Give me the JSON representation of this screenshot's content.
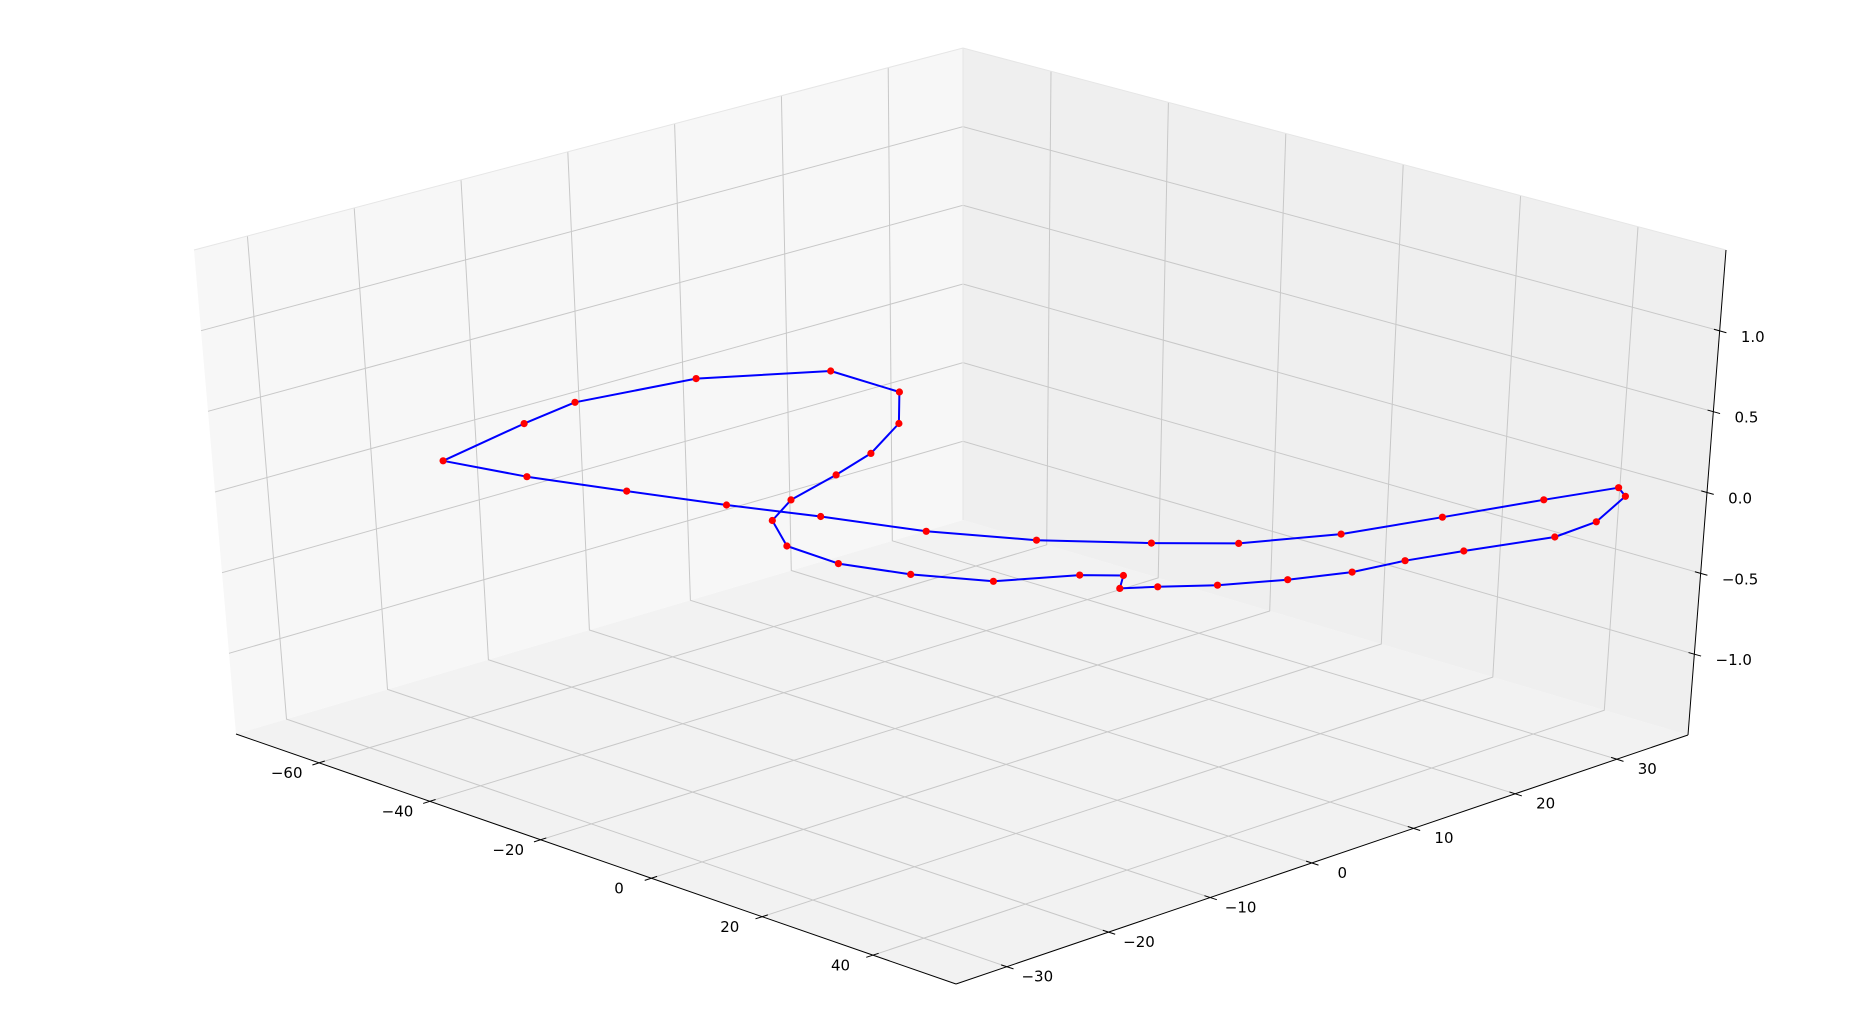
{
  "chart_data": {
    "type": "scatter",
    "projection": "3d",
    "title": "",
    "xlabel": "",
    "ylabel": "",
    "zlabel": "",
    "xlim": [
      -75,
      55
    ],
    "ylim": [
      -35,
      37
    ],
    "zlim": [
      -1.5,
      1.5
    ],
    "grid": true,
    "legend": "none",
    "x_ticks": [
      {
        "value": -60,
        "label": "−60"
      },
      {
        "value": -40,
        "label": "−40"
      },
      {
        "value": -20,
        "label": "−20"
      },
      {
        "value": 0,
        "label": "0"
      },
      {
        "value": 20,
        "label": "20"
      },
      {
        "value": 40,
        "label": "40"
      }
    ],
    "y_ticks": [
      {
        "value": -30,
        "label": "−30"
      },
      {
        "value": -20,
        "label": "−20"
      },
      {
        "value": -10,
        "label": "−10"
      },
      {
        "value": 0,
        "label": "0"
      },
      {
        "value": 10,
        "label": "10"
      },
      {
        "value": 20,
        "label": "20"
      },
      {
        "value": 30,
        "label": "30"
      }
    ],
    "z_ticks": [
      {
        "value": -1.0,
        "label": "−1.0"
      },
      {
        "value": -0.5,
        "label": "−0.5"
      },
      {
        "value": 0.0,
        "label": "0.0"
      },
      {
        "value": 0.5,
        "label": "0.5"
      },
      {
        "value": 1.0,
        "label": "1.0"
      }
    ],
    "series": [
      {
        "kind": "line",
        "color": "#0000ff",
        "points": [
          [
            -66,
            -18,
            0
          ],
          [
            -70,
            -8,
            0
          ],
          [
            -72,
            -2,
            0
          ],
          [
            -69,
            8,
            0
          ],
          [
            -60,
            16,
            0
          ],
          [
            -48,
            16,
            0
          ],
          [
            -39,
            11,
            0
          ],
          [
            -33,
            5,
            0
          ],
          [
            -30,
            0,
            0
          ],
          [
            -27,
            -6,
            0
          ],
          [
            -23,
            -10,
            0
          ],
          [
            -15,
            -13,
            0
          ],
          [
            -6,
            -13,
            0
          ],
          [
            3,
            -11,
            0
          ],
          [
            12,
            -8,
            0
          ],
          [
            18,
            -3,
            0
          ],
          [
            22,
            -1,
            0
          ],
          [
            25,
            -3,
            0
          ],
          [
            28,
            -1,
            0
          ],
          [
            33,
            2,
            0
          ],
          [
            38,
            6,
            0
          ],
          [
            42,
            10,
            0
          ],
          [
            44,
            14,
            0
          ],
          [
            47,
            18,
            0
          ],
          [
            52,
            24,
            0
          ],
          [
            52,
            28,
            0
          ],
          [
            48,
            33,
            0
          ],
          [
            45,
            34,
            0
          ],
          [
            41,
            29,
            0
          ],
          [
            36,
            22,
            0
          ],
          [
            31,
            15,
            0
          ],
          [
            24,
            9,
            0
          ],
          [
            16,
            5,
            0
          ],
          [
            5,
            0,
            0
          ],
          [
            -7,
            -4,
            0
          ],
          [
            -20,
            -7,
            0
          ],
          [
            -31,
            -10,
            0
          ],
          [
            -43,
            -13,
            0
          ],
          [
            -55,
            -16,
            0
          ],
          [
            -66,
            -18,
            0
          ]
        ]
      },
      {
        "kind": "scatter",
        "color": "#ff0000",
        "points": [
          [
            -66,
            -18,
            0
          ],
          [
            -70,
            -8,
            0
          ],
          [
            -72,
            -2,
            0
          ],
          [
            -69,
            8,
            0
          ],
          [
            -60,
            16,
            0
          ],
          [
            -48,
            16,
            0
          ],
          [
            -39,
            11,
            0
          ],
          [
            -33,
            5,
            0
          ],
          [
            -30,
            0,
            0
          ],
          [
            -27,
            -6,
            0
          ],
          [
            -23,
            -10,
            0
          ],
          [
            -15,
            -13,
            0
          ],
          [
            -6,
            -13,
            0
          ],
          [
            3,
            -11,
            0
          ],
          [
            12,
            -8,
            0
          ],
          [
            18,
            -3,
            0
          ],
          [
            22,
            -1,
            0
          ],
          [
            25,
            -3,
            0
          ],
          [
            28,
            -1,
            0
          ],
          [
            33,
            2,
            0
          ],
          [
            38,
            6,
            0
          ],
          [
            42,
            10,
            0
          ],
          [
            44,
            14,
            0
          ],
          [
            47,
            18,
            0
          ],
          [
            52,
            24,
            0
          ],
          [
            52,
            28,
            0
          ],
          [
            48,
            33,
            0
          ],
          [
            45,
            34,
            0
          ],
          [
            41,
            29,
            0
          ],
          [
            36,
            22,
            0
          ],
          [
            31,
            15,
            0
          ],
          [
            24,
            9,
            0
          ],
          [
            16,
            5,
            0
          ],
          [
            5,
            0,
            0
          ],
          [
            -7,
            -4,
            0
          ],
          [
            -20,
            -7,
            0
          ],
          [
            -31,
            -10,
            0
          ],
          [
            -43,
            -13,
            0
          ],
          [
            -55,
            -16,
            0
          ]
        ]
      }
    ]
  }
}
